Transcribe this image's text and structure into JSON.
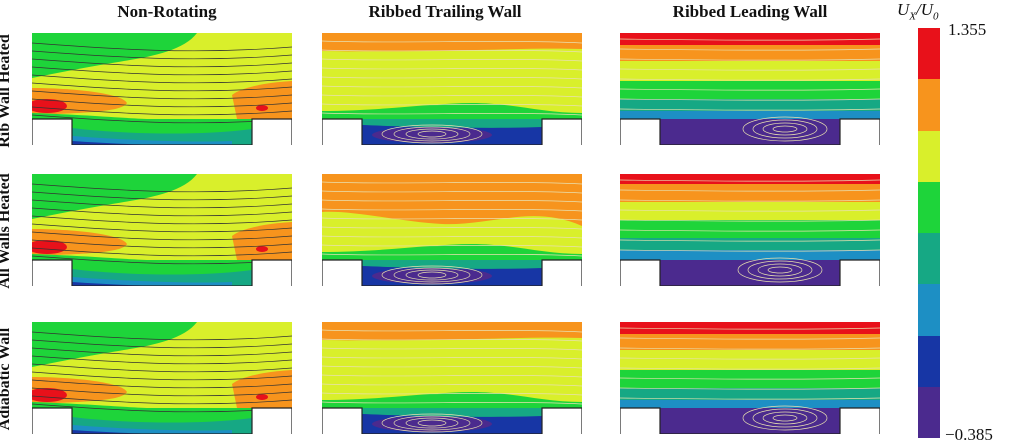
{
  "columns": [
    "Non-Rotating",
    "Ribbed Trailing Wall",
    "Ribbed Leading Wall"
  ],
  "rows": [
    "Rib Wall Heated",
    "All Walls Heated",
    "Adiabatic Wall"
  ],
  "colorbar": {
    "title_main": "U",
    "title_sub1": "X",
    "title_slash": "/U",
    "title_sub2": "0",
    "max_label": "1.355",
    "min_label": "−0.385",
    "max": 1.355,
    "min": -0.385,
    "levels": [
      "#e8111a",
      "#f7941d",
      "#d9ef2b",
      "#1ed43a",
      "#16a884",
      "#1d8fc4",
      "#1736a5",
      "#4b2a8e"
    ]
  },
  "colors": {
    "red": "#e8111a",
    "orange": "#f7941d",
    "yellow_green": "#d9ef2b",
    "green": "#1ed43a",
    "teal": "#16a884",
    "blue": "#1d8fc4",
    "dark_blue": "#1736a5",
    "purple": "#4b2a8e",
    "streamline_dark": "#333333",
    "streamline_light": "#e8e0b0"
  }
}
